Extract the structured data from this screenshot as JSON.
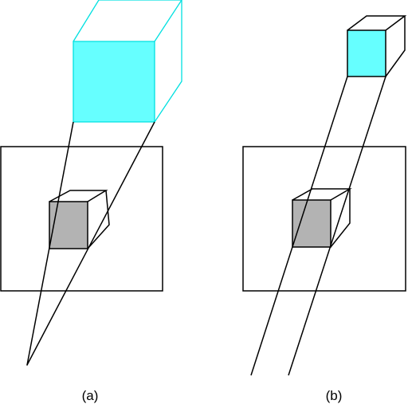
{
  "captions": {
    "a": "(a)",
    "b": "(b)"
  },
  "colors": {
    "stroke": "#000000",
    "near_face": "#b3b3b3",
    "far_face": "#66ffff",
    "far_edge_a": "#00e0e0"
  }
}
